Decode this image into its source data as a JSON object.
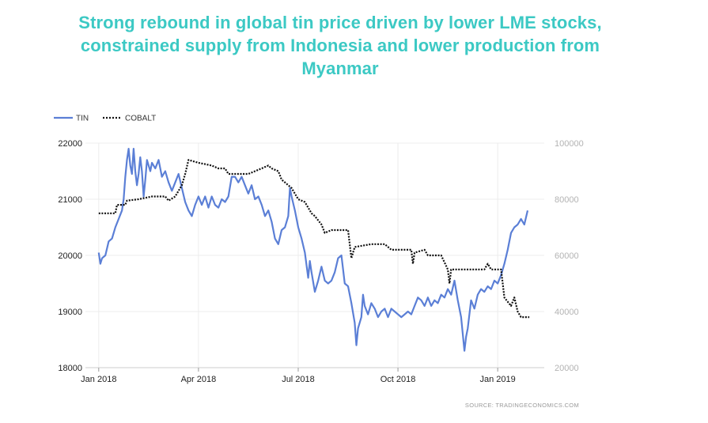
{
  "chart_data": {
    "type": "line",
    "title_lines": [
      "Strong rebound in global tin price driven by lower LME stocks,",
      "constrained supply from Indonesia and lower production from",
      "Myanmar"
    ],
    "legend": [
      "TIN",
      "COBALT"
    ],
    "legend_placement": "top-left",
    "source": "SOURCE:  TRADINGECONOMICS.COM",
    "grid": true,
    "x_ticks": [
      {
        "label": "Jan 2018",
        "t": 0
      },
      {
        "label": "Apr 2018",
        "t": 3
      },
      {
        "label": "Jul 2018",
        "t": 6
      },
      {
        "label": "Oct 2018",
        "t": 9
      },
      {
        "label": "Jan 2019",
        "t": 12
      }
    ],
    "xlim": [
      -0.4,
      13.4
    ],
    "y_left": {
      "ticks": [
        22000,
        21000,
        20000,
        19000,
        18000
      ],
      "lim": [
        18000,
        22000
      ]
    },
    "y_right": {
      "ticks": [
        "100000",
        "80000",
        "60000",
        "40000",
        "20000"
      ],
      "lim": [
        20000,
        100000
      ]
    },
    "series": [
      {
        "name": "TIN",
        "axis": "left",
        "color": "#5b7fd6",
        "style": "solid",
        "points": [
          [
            0.0,
            20050
          ],
          [
            0.05,
            19850
          ],
          [
            0.1,
            19950
          ],
          [
            0.2,
            20000
          ],
          [
            0.3,
            20250
          ],
          [
            0.4,
            20300
          ],
          [
            0.5,
            20500
          ],
          [
            0.6,
            20650
          ],
          [
            0.7,
            20800
          ],
          [
            0.75,
            21000
          ],
          [
            0.8,
            21400
          ],
          [
            0.85,
            21700
          ],
          [
            0.9,
            21900
          ],
          [
            0.95,
            21600
          ],
          [
            1.0,
            21450
          ],
          [
            1.05,
            21900
          ],
          [
            1.1,
            21500
          ],
          [
            1.15,
            21250
          ],
          [
            1.2,
            21450
          ],
          [
            1.25,
            21750
          ],
          [
            1.3,
            21500
          ],
          [
            1.35,
            21050
          ],
          [
            1.4,
            21350
          ],
          [
            1.45,
            21700
          ],
          [
            1.5,
            21600
          ],
          [
            1.55,
            21500
          ],
          [
            1.6,
            21650
          ],
          [
            1.7,
            21550
          ],
          [
            1.8,
            21700
          ],
          [
            1.9,
            21400
          ],
          [
            2.0,
            21500
          ],
          [
            2.1,
            21300
          ],
          [
            2.2,
            21150
          ],
          [
            2.3,
            21300
          ],
          [
            2.4,
            21450
          ],
          [
            2.5,
            21200
          ],
          [
            2.6,
            20950
          ],
          [
            2.7,
            20800
          ],
          [
            2.8,
            20700
          ],
          [
            2.9,
            20900
          ],
          [
            3.0,
            21050
          ],
          [
            3.1,
            20900
          ],
          [
            3.2,
            21050
          ],
          [
            3.3,
            20850
          ],
          [
            3.4,
            21050
          ],
          [
            3.5,
            20900
          ],
          [
            3.6,
            20850
          ],
          [
            3.7,
            21000
          ],
          [
            3.8,
            20950
          ],
          [
            3.9,
            21050
          ],
          [
            4.0,
            21400
          ],
          [
            4.1,
            21400
          ],
          [
            4.2,
            21300
          ],
          [
            4.3,
            21400
          ],
          [
            4.4,
            21250
          ],
          [
            4.5,
            21100
          ],
          [
            4.6,
            21250
          ],
          [
            4.7,
            21000
          ],
          [
            4.8,
            21050
          ],
          [
            4.9,
            20900
          ],
          [
            5.0,
            20700
          ],
          [
            5.1,
            20800
          ],
          [
            5.2,
            20600
          ],
          [
            5.3,
            20300
          ],
          [
            5.4,
            20200
          ],
          [
            5.5,
            20450
          ],
          [
            5.6,
            20500
          ],
          [
            5.7,
            20700
          ],
          [
            5.75,
            21200
          ],
          [
            5.8,
            21050
          ],
          [
            5.9,
            20800
          ],
          [
            6.0,
            20500
          ],
          [
            6.1,
            20300
          ],
          [
            6.2,
            20050
          ],
          [
            6.3,
            19600
          ],
          [
            6.35,
            19900
          ],
          [
            6.4,
            19700
          ],
          [
            6.5,
            19350
          ],
          [
            6.6,
            19550
          ],
          [
            6.7,
            19800
          ],
          [
            6.8,
            19550
          ],
          [
            6.9,
            19500
          ],
          [
            7.0,
            19550
          ],
          [
            7.1,
            19700
          ],
          [
            7.2,
            19950
          ],
          [
            7.3,
            20000
          ],
          [
            7.35,
            19750
          ],
          [
            7.4,
            19500
          ],
          [
            7.5,
            19450
          ],
          [
            7.6,
            19150
          ],
          [
            7.7,
            18800
          ],
          [
            7.75,
            18400
          ],
          [
            7.8,
            18700
          ],
          [
            7.9,
            18900
          ],
          [
            7.95,
            19300
          ],
          [
            8.0,
            19100
          ],
          [
            8.1,
            18950
          ],
          [
            8.2,
            19150
          ],
          [
            8.3,
            19050
          ],
          [
            8.4,
            18900
          ],
          [
            8.5,
            19000
          ],
          [
            8.6,
            19050
          ],
          [
            8.7,
            18900
          ],
          [
            8.8,
            19050
          ],
          [
            8.9,
            19000
          ],
          [
            9.0,
            18950
          ],
          [
            9.1,
            18900
          ],
          [
            9.2,
            18950
          ],
          [
            9.3,
            19000
          ],
          [
            9.4,
            18950
          ],
          [
            9.5,
            19100
          ],
          [
            9.6,
            19250
          ],
          [
            9.7,
            19200
          ],
          [
            9.8,
            19100
          ],
          [
            9.9,
            19250
          ],
          [
            10.0,
            19100
          ],
          [
            10.1,
            19200
          ],
          [
            10.2,
            19150
          ],
          [
            10.3,
            19300
          ],
          [
            10.4,
            19250
          ],
          [
            10.5,
            19400
          ],
          [
            10.6,
            19300
          ],
          [
            10.7,
            19550
          ],
          [
            10.8,
            19200
          ],
          [
            10.9,
            18900
          ],
          [
            11.0,
            18300
          ],
          [
            11.05,
            18550
          ],
          [
            11.1,
            18700
          ],
          [
            11.2,
            19200
          ],
          [
            11.3,
            19050
          ],
          [
            11.4,
            19300
          ],
          [
            11.5,
            19400
          ],
          [
            11.6,
            19350
          ],
          [
            11.7,
            19450
          ],
          [
            11.8,
            19400
          ],
          [
            11.9,
            19550
          ],
          [
            12.0,
            19500
          ],
          [
            12.1,
            19650
          ],
          [
            12.2,
            19850
          ],
          [
            12.3,
            20100
          ],
          [
            12.4,
            20400
          ],
          [
            12.5,
            20500
          ],
          [
            12.6,
            20550
          ],
          [
            12.7,
            20650
          ],
          [
            12.8,
            20550
          ],
          [
            12.9,
            20800
          ]
        ]
      },
      {
        "name": "COBALT",
        "axis": "right",
        "color": "#111111",
        "style": "dotted",
        "points": [
          [
            0.0,
            75000
          ],
          [
            0.5,
            75000
          ],
          [
            0.55,
            78000
          ],
          [
            0.8,
            78000
          ],
          [
            0.85,
            79500
          ],
          [
            1.2,
            80000
          ],
          [
            1.6,
            81000
          ],
          [
            2.0,
            81000
          ],
          [
            2.1,
            79500
          ],
          [
            2.3,
            81000
          ],
          [
            2.5,
            85000
          ],
          [
            2.6,
            89000
          ],
          [
            2.7,
            94000
          ],
          [
            3.0,
            93000
          ],
          [
            3.2,
            92500
          ],
          [
            3.4,
            92000
          ],
          [
            3.6,
            91000
          ],
          [
            3.8,
            91000
          ],
          [
            3.9,
            89000
          ],
          [
            4.5,
            89000
          ],
          [
            4.7,
            90000
          ],
          [
            4.9,
            91000
          ],
          [
            5.1,
            92000
          ],
          [
            5.2,
            91000
          ],
          [
            5.4,
            90000
          ],
          [
            5.5,
            87000
          ],
          [
            5.6,
            86000
          ],
          [
            5.8,
            84000
          ],
          [
            6.0,
            80000
          ],
          [
            6.2,
            79000
          ],
          [
            6.4,
            75000
          ],
          [
            6.5,
            74000
          ],
          [
            6.7,
            71000
          ],
          [
            6.8,
            68000
          ],
          [
            7.0,
            69000
          ],
          [
            7.5,
            69000
          ],
          [
            7.6,
            59000
          ],
          [
            7.7,
            63000
          ],
          [
            8.2,
            64000
          ],
          [
            8.6,
            64000
          ],
          [
            8.8,
            62000
          ],
          [
            9.0,
            62000
          ],
          [
            9.4,
            62000
          ],
          [
            9.45,
            57000
          ],
          [
            9.5,
            61000
          ],
          [
            9.8,
            62000
          ],
          [
            9.9,
            60000
          ],
          [
            10.3,
            60000
          ],
          [
            10.5,
            55000
          ],
          [
            10.55,
            50000
          ],
          [
            10.6,
            55000
          ],
          [
            11.6,
            55000
          ],
          [
            11.7,
            57000
          ],
          [
            11.8,
            55000
          ],
          [
            12.1,
            55000
          ],
          [
            12.2,
            45000
          ],
          [
            12.4,
            42000
          ],
          [
            12.5,
            45000
          ],
          [
            12.6,
            40000
          ],
          [
            12.7,
            38000
          ],
          [
            12.95,
            38000
          ]
        ]
      }
    ]
  }
}
